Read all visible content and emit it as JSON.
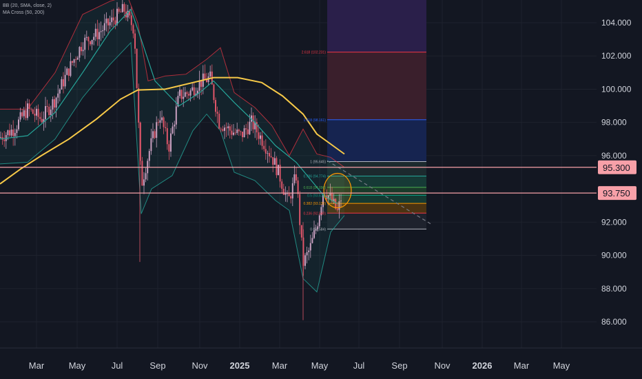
{
  "legend": {
    "line1": "BB (20, SMA, close, 2)",
    "line2": "MA Cross (50, 200)"
  },
  "chart_data": {
    "type": "candlestick",
    "x_ticks": [
      {
        "label": "Mar",
        "bold": false
      },
      {
        "label": "May",
        "bold": false
      },
      {
        "label": "Jul",
        "bold": false
      },
      {
        "label": "Sep",
        "bold": false
      },
      {
        "label": "Nov",
        "bold": false
      },
      {
        "label": "2025",
        "bold": true
      },
      {
        "label": "Mar",
        "bold": false
      },
      {
        "label": "May",
        "bold": false
      },
      {
        "label": "Jul",
        "bold": false
      },
      {
        "label": "Sep",
        "bold": false
      },
      {
        "label": "Nov",
        "bold": false
      },
      {
        "label": "2026",
        "bold": true
      },
      {
        "label": "Mar",
        "bold": false
      },
      {
        "label": "May",
        "bold": false
      }
    ],
    "y_ticks": [
      "104.000",
      "102.000",
      "100.000",
      "98.000",
      "96.000",
      "92.000",
      "90.000",
      "88.000",
      "86.000"
    ],
    "y_tick_values": [
      104,
      102,
      100,
      98,
      96,
      92,
      90,
      88,
      86
    ],
    "ylim": [
      85.6,
      105.3
    ],
    "horizontal_levels": [
      {
        "label": "95.300",
        "value": 95.3
      },
      {
        "label": "93.750",
        "value": 93.75
      }
    ],
    "fibonacci": [
      {
        "label": "2.618 (102.231)",
        "value": 102.231,
        "color": "#f23645"
      },
      {
        "label": "1.618 (98.161)",
        "value": 98.161,
        "color": "#2962ff"
      },
      {
        "label": "1 (95.645)",
        "value": 95.645,
        "color": "#b2b5be"
      },
      {
        "label": "0.786 (94.774)",
        "value": 94.774,
        "color": "#26a69a"
      },
      {
        "label": "0.618 (94.090)",
        "value": 94.09,
        "color": "#4caf50"
      },
      {
        "label": "0.5 (93.610)",
        "value": 93.61,
        "color": "#089981"
      },
      {
        "label": "0.382 (93.130)",
        "value": 93.13,
        "color": "#ff9800"
      },
      {
        "label": "0.236 (92.540)",
        "value": 92.54,
        "color": "#f23645"
      },
      {
        "label": "0 (91.584)",
        "value": 91.584,
        "color": "#b2b5be"
      }
    ],
    "ma_200": [
      [
        0,
        94.3
      ],
      [
        30,
        95.2
      ],
      [
        60,
        96.0
      ],
      [
        100,
        97.0
      ],
      [
        140,
        98.2
      ],
      [
        175,
        99.4
      ],
      [
        200,
        99.95
      ],
      [
        240,
        100.0
      ],
      [
        280,
        100.4
      ],
      [
        310,
        100.7
      ],
      [
        345,
        100.7
      ],
      [
        380,
        100.4
      ],
      [
        410,
        99.6
      ],
      [
        440,
        98.5
      ],
      [
        460,
        97.3
      ],
      [
        480,
        96.7
      ],
      [
        500,
        96.1
      ]
    ],
    "ma_50": [
      [
        0,
        97.0
      ],
      [
        40,
        97.2
      ],
      [
        80,
        98.6
      ],
      [
        120,
        101.0
      ],
      [
        160,
        103.5
      ],
      [
        190,
        104.8
      ],
      [
        205,
        103.0
      ],
      [
        225,
        100.5
      ],
      [
        260,
        99.0
      ],
      [
        290,
        99.8
      ],
      [
        310,
        100.5
      ],
      [
        340,
        99.2
      ],
      [
        370,
        98.0
      ],
      [
        400,
        96.6
      ],
      [
        430,
        95.6
      ],
      [
        450,
        94.6
      ],
      [
        470,
        93.6
      ],
      [
        490,
        93.1
      ]
    ],
    "bb_upper": [
      [
        0,
        98.8
      ],
      [
        40,
        98.8
      ],
      [
        80,
        101.0
      ],
      [
        120,
        104.5
      ],
      [
        160,
        105.3
      ],
      [
        185,
        105.6
      ],
      [
        200,
        104.0
      ],
      [
        215,
        100.5
      ],
      [
        240,
        100.8
      ],
      [
        270,
        100.9
      ],
      [
        300,
        101.8
      ],
      [
        320,
        102.5
      ],
      [
        340,
        99.8
      ],
      [
        370,
        98.9
      ],
      [
        395,
        97.8
      ],
      [
        420,
        96.0
      ],
      [
        440,
        97.6
      ],
      [
        460,
        96.1
      ],
      [
        480,
        95.9
      ],
      [
        500,
        95.3
      ]
    ],
    "bb_lower": [
      [
        0,
        95.5
      ],
      [
        40,
        95.6
      ],
      [
        80,
        97.0
      ],
      [
        120,
        99.5
      ],
      [
        160,
        101.5
      ],
      [
        190,
        102.8
      ],
      [
        205,
        92.5
      ],
      [
        220,
        94.0
      ],
      [
        250,
        94.8
      ],
      [
        280,
        97.5
      ],
      [
        300,
        98.5
      ],
      [
        320,
        97.5
      ],
      [
        340,
        95.0
      ],
      [
        370,
        94.5
      ],
      [
        400,
        93.3
      ],
      [
        420,
        92.7
      ],
      [
        440,
        88.6
      ],
      [
        460,
        87.8
      ],
      [
        480,
        91.4
      ],
      [
        500,
        92.4
      ]
    ],
    "price": [
      [
        0,
        97.1
      ],
      [
        20,
        97.6
      ],
      [
        40,
        98.8
      ],
      [
        60,
        98.2
      ],
      [
        80,
        99.4
      ],
      [
        100,
        101.2
      ],
      [
        120,
        102.8
      ],
      [
        140,
        103.3
      ],
      [
        160,
        104.0
      ],
      [
        180,
        104.8
      ],
      [
        195,
        103.6
      ],
      [
        205,
        94.2
      ],
      [
        218,
        96.5
      ],
      [
        232,
        98.5
      ],
      [
        245,
        96.5
      ],
      [
        260,
        99.6
      ],
      [
        275,
        99.8
      ],
      [
        290,
        100.4
      ],
      [
        305,
        100.7
      ],
      [
        318,
        98.0
      ],
      [
        335,
        97.5
      ],
      [
        350,
        97.2
      ],
      [
        365,
        98.0
      ],
      [
        380,
        97.0
      ],
      [
        395,
        95.9
      ],
      [
        405,
        94.9
      ],
      [
        418,
        93.2
      ],
      [
        430,
        94.8
      ],
      [
        440,
        89.5
      ],
      [
        450,
        90.4
      ],
      [
        460,
        91.8
      ],
      [
        470,
        94.0
      ],
      [
        480,
        93.4
      ],
      [
        490,
        92.6
      ],
      [
        497,
        93.75
      ]
    ]
  }
}
